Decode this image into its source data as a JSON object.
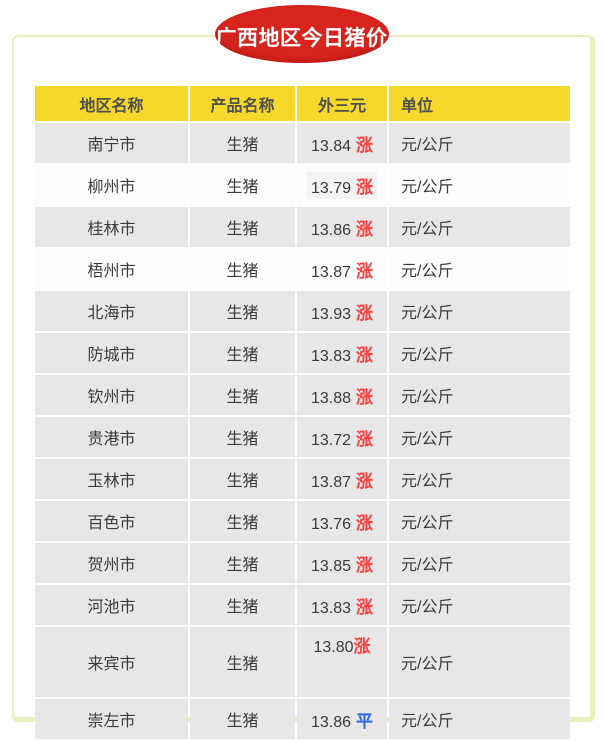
{
  "title": {
    "text": "广西地区今日猪价",
    "badge_color": "#d7251e",
    "text_color": "#ffffff"
  },
  "frame": {
    "border_color": "#e7efba"
  },
  "table": {
    "header_bg": "#f5d829",
    "row_gray_bg": "#e7e7e7",
    "row_white_bg": "#fdfdfd",
    "trend_colors": {
      "up": "#f93f3f",
      "flat": "#2f66e0"
    },
    "headers": [
      {
        "id": "region",
        "label": "地区名称",
        "align": "center"
      },
      {
        "id": "product",
        "label": "产品名称",
        "align": "center"
      },
      {
        "id": "price",
        "label": "外三元",
        "align": "center"
      },
      {
        "id": "unit",
        "label": "单位",
        "align": "left"
      }
    ],
    "rows": [
      {
        "region": "南宁市",
        "product": "生猪",
        "price": "13.84",
        "trend": "涨",
        "trend_dir": "up",
        "unit": "元/公斤",
        "bg": "gray"
      },
      {
        "region": "柳州市",
        "product": "生猪",
        "price": "13.79",
        "trend": "涨",
        "trend_dir": "up",
        "unit": "元/公斤",
        "bg": "white",
        "price_shaded": true
      },
      {
        "region": "桂林市",
        "product": "生猪",
        "price": "13.86",
        "trend": "涨",
        "trend_dir": "up",
        "unit": "元/公斤",
        "bg": "gray"
      },
      {
        "region": "梧州市",
        "product": "生猪",
        "price": "13.87",
        "trend": "涨",
        "trend_dir": "up",
        "unit": "元/公斤",
        "bg": "white"
      },
      {
        "region": "北海市",
        "product": "生猪",
        "price": "13.93",
        "trend": "涨",
        "trend_dir": "up",
        "unit": "元/公斤",
        "bg": "gray"
      },
      {
        "region": "防城市",
        "product": "生猪",
        "price": "13.83",
        "trend": "涨",
        "trend_dir": "up",
        "unit": "元/公斤",
        "bg": "gray"
      },
      {
        "region": "钦州市",
        "product": "生猪",
        "price": "13.88",
        "trend": "涨",
        "trend_dir": "up",
        "unit": "元/公斤",
        "bg": "gray"
      },
      {
        "region": "贵港市",
        "product": "生猪",
        "price": "13.72",
        "trend": "涨",
        "trend_dir": "up",
        "unit": "元/公斤",
        "bg": "gray"
      },
      {
        "region": "玉林市",
        "product": "生猪",
        "price": "13.87",
        "trend": "涨",
        "trend_dir": "up",
        "unit": "元/公斤",
        "bg": "gray"
      },
      {
        "region": "百色市",
        "product": "生猪",
        "price": "13.76",
        "trend": "涨",
        "trend_dir": "up",
        "unit": "元/公斤",
        "bg": "gray"
      },
      {
        "region": "贺州市",
        "product": "生猪",
        "price": "13.85",
        "trend": "涨",
        "trend_dir": "up",
        "unit": "元/公斤",
        "bg": "gray"
      },
      {
        "region": "河池市",
        "product": "生猪",
        "price": "13.83",
        "trend": "涨",
        "trend_dir": "up",
        "unit": "元/公斤",
        "bg": "gray"
      },
      {
        "region": "来宾市",
        "product": "生猪",
        "price": "13.80",
        "trend": "涨",
        "trend_dir": "up",
        "unit": "元/公斤",
        "bg": "gray",
        "tall": true,
        "no_space": true
      },
      {
        "region": "崇左市",
        "product": "生猪",
        "price": "13.86",
        "trend": "平",
        "trend_dir": "flat",
        "unit": "元/公斤",
        "bg": "gray"
      }
    ]
  }
}
